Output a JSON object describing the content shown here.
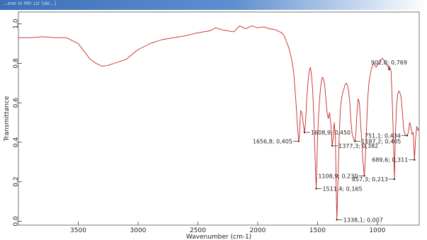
{
  "window": {
    "title": "...exe in Mir Ltr (de...)"
  },
  "chart_data": {
    "type": "line",
    "xlabel": "Wavenumber (cm-1)",
    "ylabel": "Transmittance",
    "xlim": [
      4000,
      650
    ],
    "ylim": [
      -0.02,
      1.06
    ],
    "x_ticks": [
      3500,
      3000,
      2500,
      2000,
      1500,
      1000
    ],
    "y_ticks": [
      0.0,
      0.2,
      0.4,
      0.6,
      0.8,
      1.0
    ],
    "y_tick_labels": [
      "0,0",
      "0,2",
      "0,4",
      "0,6",
      "0,8",
      "1,0"
    ],
    "line_color": "#c62828",
    "series": [
      {
        "x": [
          4000,
          3900,
          3800,
          3700,
          3600,
          3500,
          3450,
          3400,
          3350,
          3300,
          3250,
          3200,
          3100,
          3000,
          2900,
          2800,
          2700,
          2600,
          2500,
          2400,
          2350,
          2300,
          2200,
          2150,
          2100,
          2050,
          2000,
          1950,
          1900,
          1850,
          1800,
          1780,
          1760,
          1740,
          1720,
          1700,
          1690,
          1680,
          1670,
          1660,
          1656.8,
          1650,
          1645,
          1640,
          1630,
          1620,
          1608.9,
          1600,
          1595,
          1590,
          1580,
          1570,
          1560,
          1550,
          1540,
          1530,
          1520,
          1511.4,
          1505,
          1500,
          1490,
          1480,
          1470,
          1460,
          1450,
          1440,
          1430,
          1420,
          1410,
          1400,
          1390,
          1377.3,
          1370,
          1360,
          1350,
          1345,
          1338.1,
          1330,
          1320,
          1310,
          1300,
          1290,
          1280,
          1270,
          1260,
          1250,
          1240,
          1230,
          1220,
          1210,
          1200,
          1187.2,
          1180,
          1170,
          1160,
          1150,
          1140,
          1130,
          1120,
          1108.9,
          1100,
          1090,
          1080,
          1070,
          1060,
          1050,
          1040,
          1030,
          1020,
          1010,
          1000,
          990,
          980,
          970,
          960,
          950,
          940,
          930,
          920,
          910,
          902.0,
          895,
          885,
          875,
          865,
          857.3,
          850,
          840,
          830,
          820,
          810,
          800,
          790,
          780,
          770,
          760,
          751.1,
          740,
          730,
          720,
          710,
          700,
          689.6,
          680,
          670,
          660,
          650
        ],
        "y": [
          0.93,
          0.93,
          0.935,
          0.93,
          0.93,
          0.9,
          0.86,
          0.82,
          0.8,
          0.785,
          0.79,
          0.8,
          0.82,
          0.87,
          0.9,
          0.92,
          0.93,
          0.94,
          0.955,
          0.965,
          0.98,
          0.97,
          0.96,
          0.99,
          0.975,
          0.99,
          0.98,
          0.985,
          0.975,
          0.97,
          0.955,
          0.94,
          0.91,
          0.88,
          0.83,
          0.76,
          0.68,
          0.6,
          0.5,
          0.42,
          0.405,
          0.44,
          0.52,
          0.56,
          0.55,
          0.5,
          0.45,
          0.5,
          0.56,
          0.62,
          0.7,
          0.76,
          0.78,
          0.74,
          0.66,
          0.52,
          0.32,
          0.165,
          0.28,
          0.42,
          0.55,
          0.64,
          0.7,
          0.73,
          0.72,
          0.69,
          0.62,
          0.55,
          0.52,
          0.55,
          0.5,
          0.382,
          0.42,
          0.5,
          0.42,
          0.2,
          0.007,
          0.18,
          0.4,
          0.56,
          0.62,
          0.65,
          0.67,
          0.69,
          0.7,
          0.69,
          0.66,
          0.6,
          0.5,
          0.44,
          0.42,
          0.405,
          0.44,
          0.55,
          0.62,
          0.6,
          0.5,
          0.4,
          0.3,
          0.23,
          0.32,
          0.48,
          0.62,
          0.7,
          0.74,
          0.77,
          0.79,
          0.8,
          0.79,
          0.78,
          0.79,
          0.8,
          0.81,
          0.82,
          0.825,
          0.82,
          0.81,
          0.8,
          0.79,
          0.785,
          0.769,
          0.78,
          0.76,
          0.6,
          0.4,
          0.213,
          0.42,
          0.58,
          0.64,
          0.66,
          0.65,
          0.62,
          0.55,
          0.47,
          0.44,
          0.436,
          0.434,
          0.45,
          0.5,
          0.48,
          0.44,
          0.45,
          0.311,
          0.42,
          0.48,
          0.46,
          0.47
        ]
      }
    ],
    "annotations": [
      {
        "text": "1656,8; 0,405",
        "x": 1656.8,
        "y": 0.405,
        "side": "left"
      },
      {
        "text": "1608,9; 0,450",
        "x": 1608.9,
        "y": 0.45,
        "side": "right"
      },
      {
        "text": "1511,4; 0,165",
        "x": 1511.4,
        "y": 0.165,
        "side": "right"
      },
      {
        "text": "1377,3; 0,382",
        "x": 1377.3,
        "y": 0.382,
        "side": "right"
      },
      {
        "text": "1338,1; 0,007",
        "x": 1338.1,
        "y": 0.007,
        "side": "right"
      },
      {
        "text": "1187,2; 0,405",
        "x": 1187.2,
        "y": 0.405,
        "side": "right"
      },
      {
        "text": "1108,9; 0,230",
        "x": 1108.9,
        "y": 0.23,
        "side": "left"
      },
      {
        "text": "902,0; 0,769",
        "x": 902.0,
        "y": 0.769,
        "side": "above"
      },
      {
        "text": "857,3; 0,213",
        "x": 857.3,
        "y": 0.213,
        "side": "left"
      },
      {
        "text": "751,1; 0,434",
        "x": 751.1,
        "y": 0.434,
        "side": "left"
      },
      {
        "text": "689,6; 0,311",
        "x": 689.6,
        "y": 0.311,
        "side": "left"
      }
    ]
  }
}
